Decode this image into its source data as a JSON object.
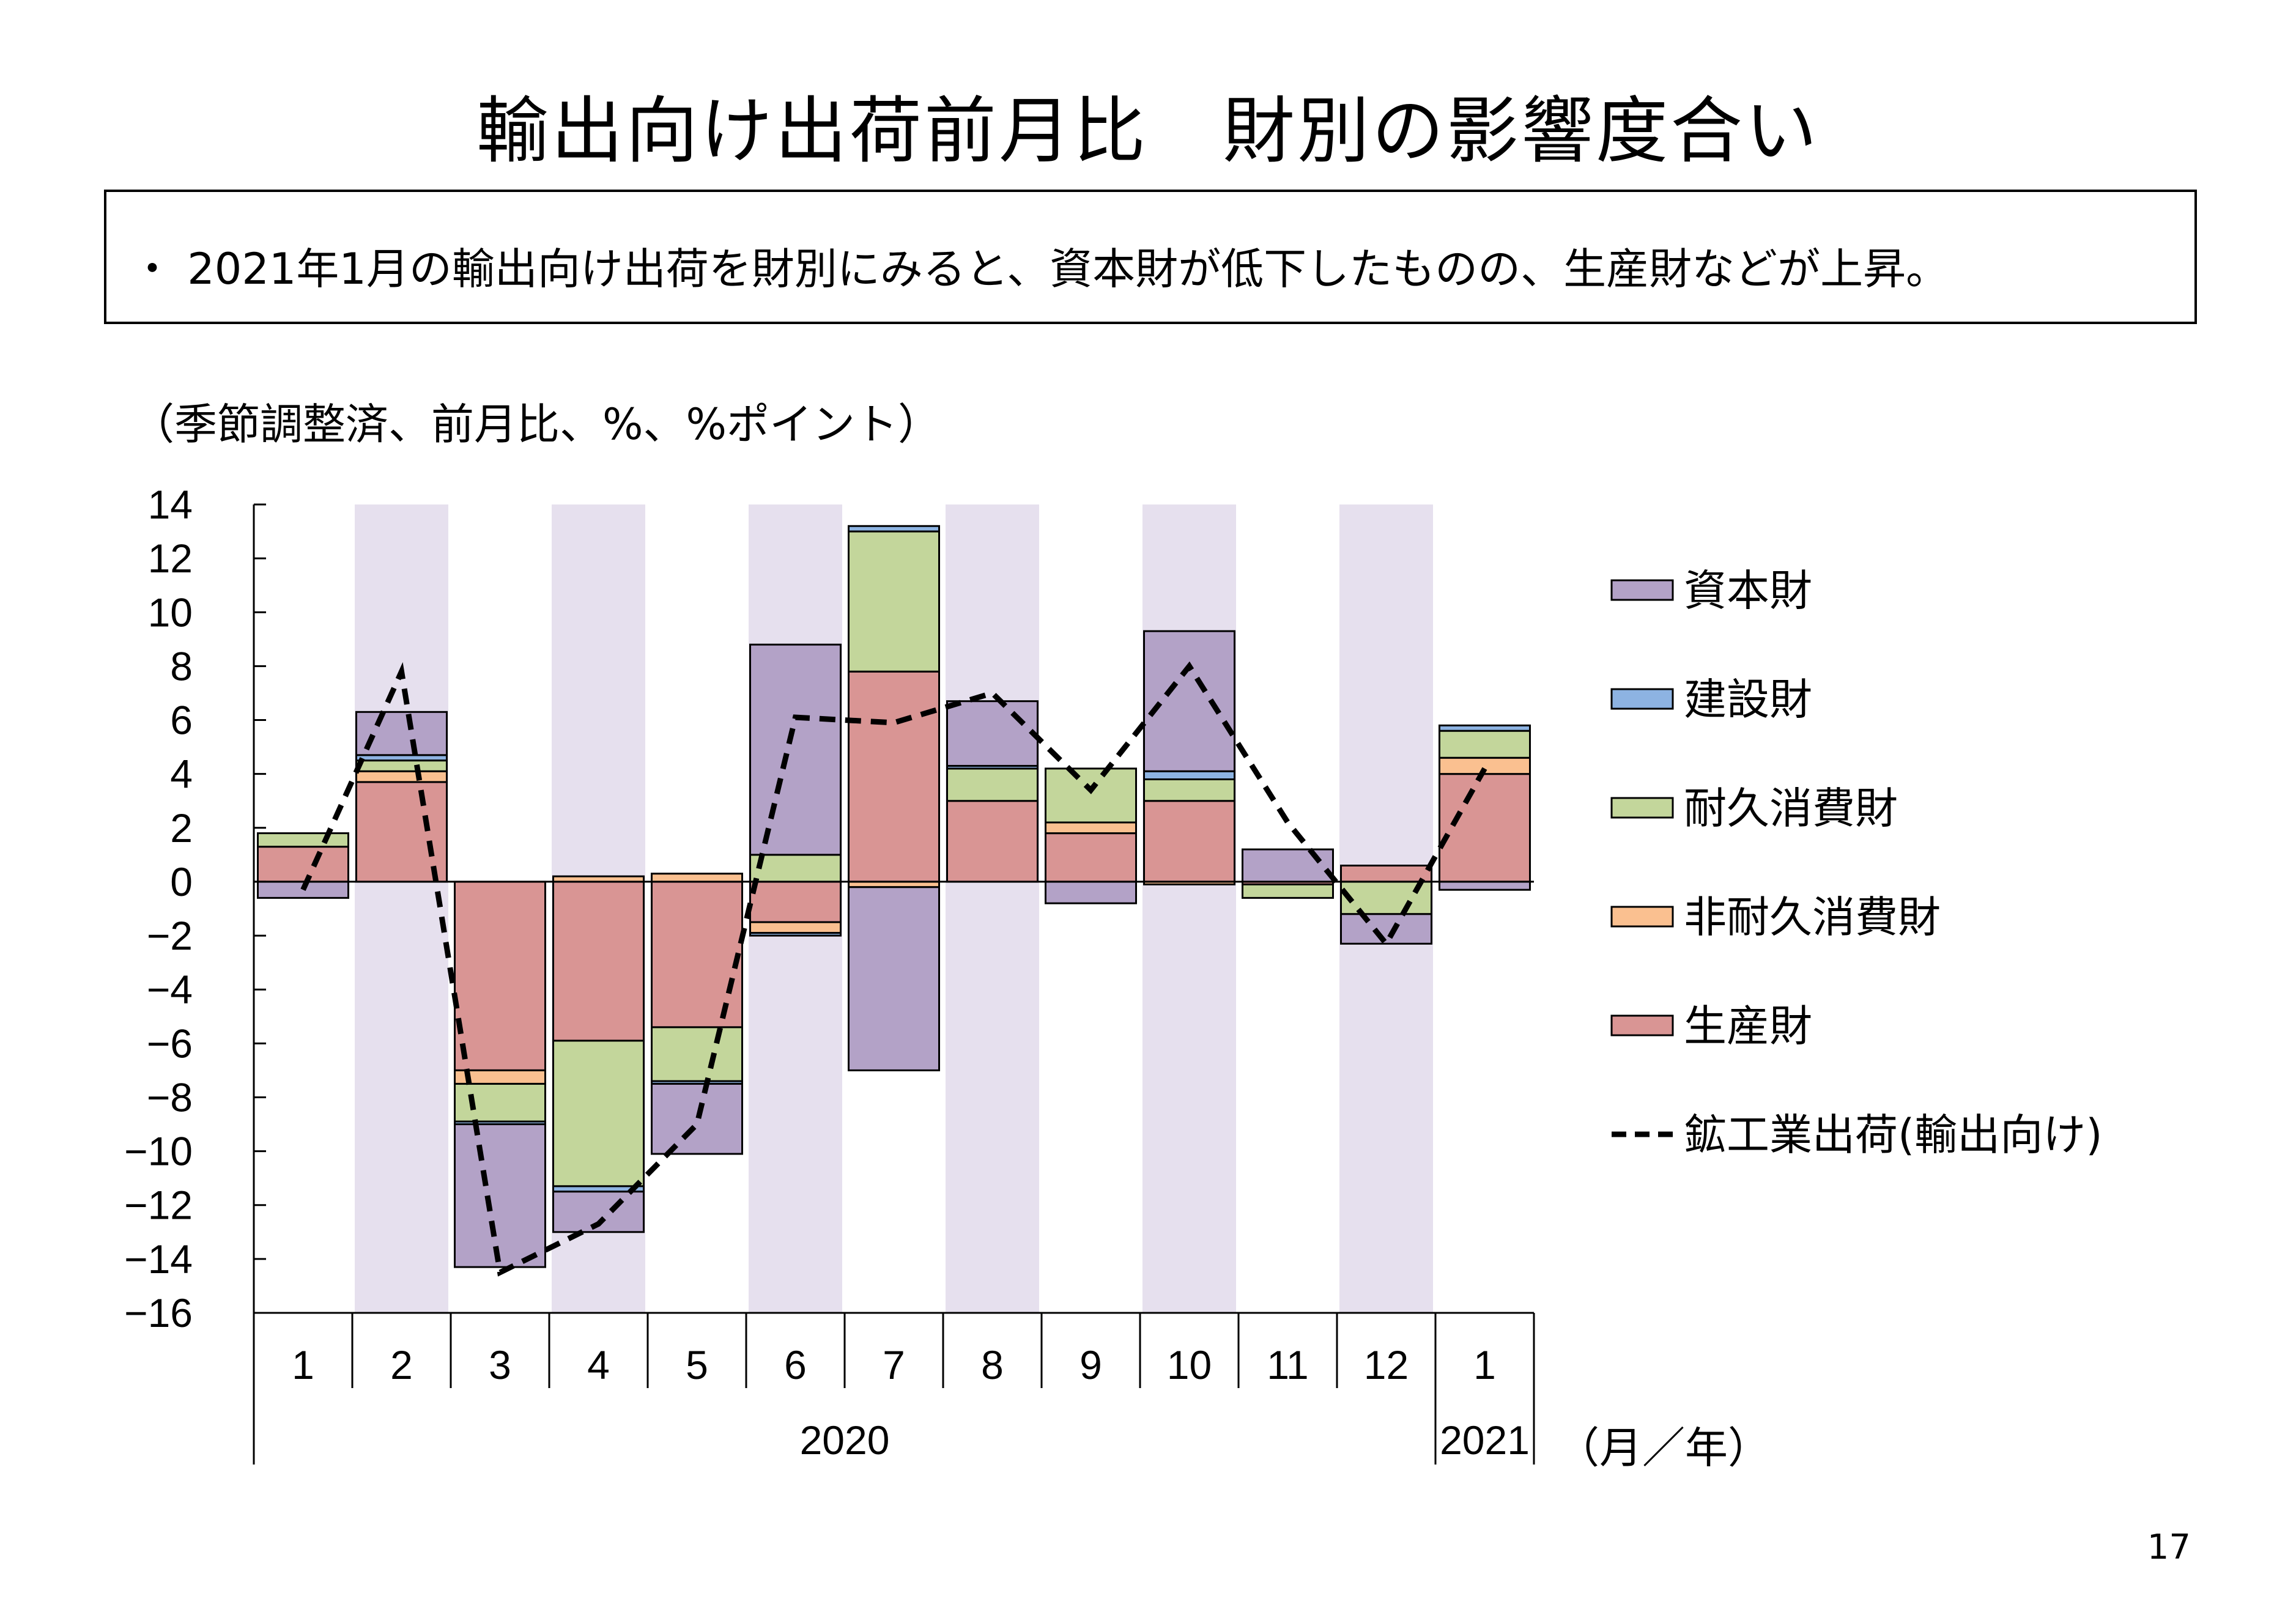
{
  "page": {
    "title": "輸出向け出荷前月比　財別の影響度合い",
    "summary": "・ 2021年1月の輸出向け出荷を財別にみると、資本財が低下したものの、生産財などが上昇。",
    "unit_note": "（季節調整済、前月比、%、%ポイント）",
    "period_unit": "（月／年）",
    "page_number": "17"
  },
  "chart_data": {
    "type": "bar",
    "stacked": true,
    "categories": [
      "1",
      "2",
      "3",
      "4",
      "5",
      "6",
      "7",
      "8",
      "9",
      "10",
      "11",
      "12",
      "1"
    ],
    "year_groups": [
      {
        "label": "2020",
        "from": 0,
        "to": 11
      },
      {
        "label": "2021",
        "from": 12,
        "to": 12
      }
    ],
    "ylim": [
      -16,
      14
    ],
    "yticks": [
      14,
      12,
      10,
      8,
      6,
      4,
      2,
      0,
      -2,
      -4,
      -6,
      -8,
      -10,
      -12,
      -14,
      -16
    ],
    "shaded_categories": [
      1,
      3,
      5,
      7,
      9,
      11
    ],
    "shade_color": "#e6e0ee",
    "series": [
      {
        "name": "生産財",
        "color": "#d99594",
        "values": [
          1.3,
          3.7,
          -7.0,
          -5.9,
          -5.4,
          -1.5,
          7.8,
          3.0,
          1.8,
          3.0,
          -0.1,
          0.6,
          4.0
        ]
      },
      {
        "name": "非耐久消費財",
        "color": "#fac090",
        "values": [
          0.0,
          0.4,
          -0.5,
          0.2,
          0.3,
          -0.4,
          -0.2,
          0.0,
          0.4,
          -0.1,
          0.0,
          0.0,
          0.6
        ]
      },
      {
        "name": "耐久消費財",
        "color": "#c3d69b",
        "values": [
          0.5,
          0.4,
          -1.4,
          -5.4,
          -2.0,
          1.0,
          5.2,
          1.2,
          2.0,
          0.8,
          -0.5,
          -1.2,
          1.0
        ]
      },
      {
        "name": "建設財",
        "color": "#8db3e2",
        "values": [
          0.0,
          0.2,
          -0.1,
          -0.2,
          -0.1,
          -0.1,
          0.2,
          0.1,
          0.0,
          0.3,
          0.0,
          0.0,
          0.2
        ]
      },
      {
        "name": "資本財",
        "color": "#b3a2c7",
        "values": [
          -0.6,
          1.6,
          -5.3,
          -1.5,
          -2.6,
          7.8,
          -6.8,
          2.4,
          -0.8,
          5.2,
          1.2,
          -1.1,
          -0.3
        ]
      }
    ],
    "line": {
      "name": "鉱工業出荷(輸出向け)",
      "values": [
        -0.3,
        7.8,
        -14.5,
        -12.7,
        -9.0,
        6.1,
        5.9,
        7.0,
        3.4,
        8.0,
        2.2,
        -2.3,
        4.2
      ]
    },
    "legend": [
      "資本財",
      "建設財",
      "耐久消費財",
      "非耐久消費財",
      "生産財",
      "鉱工業出荷(輸出向け)"
    ],
    "legend_position": "right"
  }
}
